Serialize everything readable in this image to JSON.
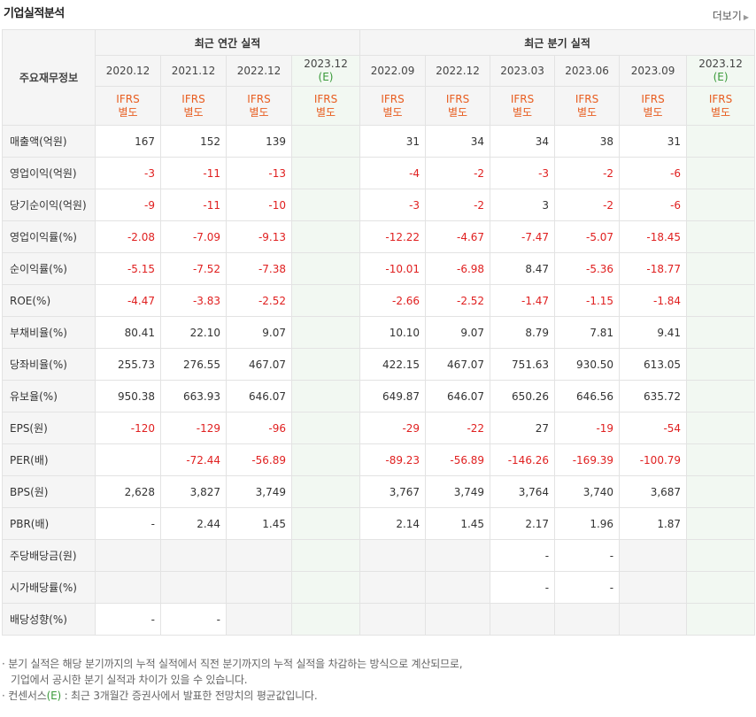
{
  "header": {
    "title": "기업실적분석",
    "more_label": "더보기"
  },
  "table": {
    "key_header": "주요재무정보",
    "annual_group": "최근 연간 실적",
    "quarter_group": "최근 분기 실적",
    "annual_dates": [
      "2020.12",
      "2021.12",
      "2022.12",
      "2023.12"
    ],
    "quarter_dates": [
      "2022.09",
      "2022.12",
      "2023.03",
      "2023.06",
      "2023.09",
      "2023.12"
    ],
    "est_mark": "(E)",
    "ifrs_top": "IFRS",
    "ifrs_bottom": "별도",
    "rows": [
      {
        "label": "매출액(억원)",
        "annual": [
          "167",
          "152",
          "139",
          ""
        ],
        "quarter": [
          "31",
          "34",
          "34",
          "38",
          "31",
          ""
        ]
      },
      {
        "label": "영업이익(억원)",
        "annual": [
          "-3",
          "-11",
          "-13",
          ""
        ],
        "quarter": [
          "-4",
          "-2",
          "-3",
          "-2",
          "-6",
          ""
        ]
      },
      {
        "label": "당기순이익(억원)",
        "annual": [
          "-9",
          "-11",
          "-10",
          ""
        ],
        "quarter": [
          "-3",
          "-2",
          "3",
          "-2",
          "-6",
          ""
        ]
      },
      {
        "label": "영업이익률(%)",
        "annual": [
          "-2.08",
          "-7.09",
          "-9.13",
          ""
        ],
        "quarter": [
          "-12.22",
          "-4.67",
          "-7.47",
          "-5.07",
          "-18.45",
          ""
        ]
      },
      {
        "label": "순이익률(%)",
        "annual": [
          "-5.15",
          "-7.52",
          "-7.38",
          ""
        ],
        "quarter": [
          "-10.01",
          "-6.98",
          "8.47",
          "-5.36",
          "-18.77",
          ""
        ]
      },
      {
        "label": "ROE(%)",
        "annual": [
          "-4.47",
          "-3.83",
          "-2.52",
          ""
        ],
        "quarter": [
          "-2.66",
          "-2.52",
          "-1.47",
          "-1.15",
          "-1.84",
          ""
        ]
      },
      {
        "label": "부채비율(%)",
        "annual": [
          "80.41",
          "22.10",
          "9.07",
          ""
        ],
        "quarter": [
          "10.10",
          "9.07",
          "8.79",
          "7.81",
          "9.41",
          ""
        ]
      },
      {
        "label": "당좌비율(%)",
        "annual": [
          "255.73",
          "276.55",
          "467.07",
          ""
        ],
        "quarter": [
          "422.15",
          "467.07",
          "751.63",
          "930.50",
          "613.05",
          ""
        ]
      },
      {
        "label": "유보율(%)",
        "annual": [
          "950.38",
          "663.93",
          "646.07",
          ""
        ],
        "quarter": [
          "649.87",
          "646.07",
          "650.26",
          "646.56",
          "635.72",
          ""
        ]
      },
      {
        "label": "EPS(원)",
        "annual": [
          "-120",
          "-129",
          "-96",
          ""
        ],
        "quarter": [
          "-29",
          "-22",
          "27",
          "-19",
          "-54",
          ""
        ]
      },
      {
        "label": "PER(배)",
        "annual": [
          "",
          "-72.44",
          "-56.89",
          ""
        ],
        "quarter": [
          "-89.23",
          "-56.89",
          "-146.26",
          "-169.39",
          "-100.79",
          ""
        ]
      },
      {
        "label": "BPS(원)",
        "annual": [
          "2,628",
          "3,827",
          "3,749",
          ""
        ],
        "quarter": [
          "3,767",
          "3,749",
          "3,764",
          "3,740",
          "3,687",
          ""
        ]
      },
      {
        "label": "PBR(배)",
        "annual": [
          "-",
          "2.44",
          "1.45",
          ""
        ],
        "quarter": [
          "2.14",
          "1.45",
          "2.17",
          "1.96",
          "1.87",
          ""
        ]
      },
      {
        "label": "주당배당금(원)",
        "annual": [
          "",
          "",
          "",
          ""
        ],
        "quarter": [
          "",
          "",
          "-",
          "-",
          "",
          ""
        ]
      },
      {
        "label": "시가배당률(%)",
        "annual": [
          "",
          "",
          "",
          ""
        ],
        "quarter": [
          "",
          "",
          "-",
          "-",
          "",
          ""
        ]
      },
      {
        "label": "배당성향(%)",
        "annual": [
          "-",
          "-",
          "",
          ""
        ],
        "quarter": [
          "",
          "",
          "",
          "",
          "",
          ""
        ]
      }
    ]
  },
  "notes": {
    "line1": "· 분기 실적은 해당 분기까지의 누적 실적에서 직전 분기까지의 누적 실적을 차감하는 방식으로 계산되므로,",
    "line2": "기업에서 공시한 분기 실적과 차이가 있을 수 있습니다.",
    "line3_prefix": "· 컨센서스",
    "line3_mark": "(E)",
    "line3_suffix": " : 최근 3개월간 증권사에서 발표한 전망치의 평균값입니다."
  },
  "colors": {
    "negative": "#e02020",
    "ifrs": "#e85d20",
    "estimate": "#3a9a3a",
    "header_bg": "#f5f5f5",
    "estimate_bg": "#f2f8f2"
  }
}
